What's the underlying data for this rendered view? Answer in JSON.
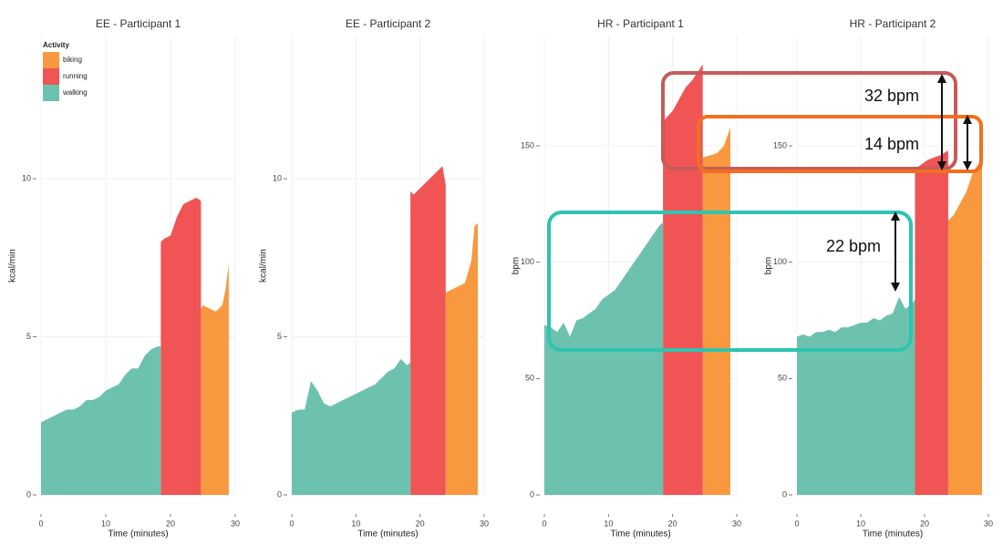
{
  "chart_data": [
    {
      "type": "area",
      "title": "EE - Participant 1",
      "x_label": "Time (minutes)",
      "y_label": "kcal/min",
      "xlim": [
        0,
        30
      ],
      "xticks": [
        0,
        10,
        20,
        30
      ],
      "ylim": [
        0,
        14.5
      ],
      "yticks": [
        0,
        5,
        10
      ],
      "grid": true,
      "legend": "top-left",
      "legend_title": "Activity",
      "series": [
        {
          "name": "biking",
          "color": "#f8993f",
          "x": [
            24.7,
            25,
            26,
            27,
            28,
            28.5,
            29
          ],
          "values": [
            5.9,
            6.0,
            5.9,
            5.8,
            6.0,
            6.5,
            7.3
          ]
        },
        {
          "name": "running",
          "color": "#f05454",
          "x": [
            18.5,
            19,
            20,
            21,
            22,
            23,
            24,
            24.7
          ],
          "values": [
            8.0,
            8.1,
            8.2,
            8.8,
            9.2,
            9.3,
            9.4,
            9.3
          ]
        },
        {
          "name": "walking",
          "color": "#6cc2ae",
          "x": [
            0,
            1,
            2,
            3,
            4,
            5,
            6,
            7,
            8,
            9,
            10,
            11,
            12,
            13,
            14,
            15,
            16,
            17,
            18,
            18.5
          ],
          "values": [
            2.3,
            2.4,
            2.5,
            2.6,
            2.7,
            2.7,
            2.8,
            3.0,
            3.0,
            3.1,
            3.3,
            3.4,
            3.5,
            3.8,
            4.0,
            4.0,
            4.4,
            4.6,
            4.7,
            4.7
          ]
        }
      ]
    },
    {
      "type": "area",
      "title": "EE - Participant 2",
      "x_label": "Time (minutes)",
      "y_label": "kcal/min",
      "xlim": [
        0,
        30
      ],
      "xticks": [
        0,
        10,
        20,
        30
      ],
      "ylim": [
        0,
        14.5
      ],
      "yticks": [
        0,
        5,
        10
      ],
      "grid": true,
      "series": [
        {
          "name": "biking",
          "color": "#f8993f",
          "x": [
            24,
            25,
            26,
            27,
            28,
            28.5,
            29
          ],
          "values": [
            6.4,
            6.5,
            6.6,
            6.7,
            7.4,
            8.5,
            8.6
          ]
        },
        {
          "name": "running",
          "color": "#f05454",
          "x": [
            18.5,
            19,
            20,
            21,
            22,
            23,
            23.5,
            24
          ],
          "values": [
            9.6,
            9.5,
            9.7,
            9.9,
            10.1,
            10.3,
            10.4,
            9.8
          ]
        },
        {
          "name": "walking",
          "color": "#6cc2ae",
          "x": [
            0,
            1,
            2,
            3,
            4,
            5,
            6,
            7,
            8,
            9,
            10,
            11,
            12,
            13,
            14,
            15,
            16,
            17,
            18,
            18.5
          ],
          "values": [
            2.6,
            2.7,
            2.7,
            3.6,
            3.3,
            2.9,
            2.8,
            2.9,
            3.0,
            3.1,
            3.2,
            3.3,
            3.4,
            3.5,
            3.7,
            3.9,
            4.0,
            4.3,
            4.1,
            4.2
          ]
        }
      ]
    },
    {
      "type": "area",
      "title": "HR - Participant 1",
      "x_label": "Time (minutes)",
      "y_label": "bpm",
      "xlim": [
        0,
        30
      ],
      "xticks": [
        0,
        10,
        20,
        30
      ],
      "ylim": [
        0,
        197
      ],
      "yticks": [
        0,
        50,
        100,
        150
      ],
      "grid": true,
      "series": [
        {
          "name": "biking",
          "color": "#f8993f",
          "x": [
            24.7,
            26,
            27,
            28,
            29
          ],
          "values": [
            145,
            146,
            147,
            150,
            158
          ]
        },
        {
          "name": "running",
          "color": "#f05454",
          "x": [
            18.5,
            19,
            20,
            21,
            22,
            23,
            24,
            24.7
          ],
          "values": [
            160,
            162,
            165,
            170,
            175,
            178,
            182,
            185
          ]
        },
        {
          "name": "walking",
          "color": "#6cc2ae",
          "x": [
            0,
            1,
            2,
            3,
            4,
            5,
            6,
            7,
            8,
            9,
            10,
            11,
            12,
            13,
            14,
            15,
            16,
            17,
            18,
            18.5
          ],
          "values": [
            73,
            72,
            70,
            74,
            68,
            75,
            76,
            78,
            80,
            84,
            86,
            88,
            92,
            96,
            100,
            104,
            108,
            112,
            116,
            117
          ]
        }
      ]
    },
    {
      "type": "area",
      "title": "HR - Participant 2",
      "x_label": "Time (minutes)",
      "y_label": "bpm",
      "xlim": [
        0,
        30
      ],
      "xticks": [
        0,
        10,
        20,
        30
      ],
      "ylim": [
        0,
        197
      ],
      "yticks": [
        0,
        50,
        100,
        150
      ],
      "grid": true,
      "annotations": [
        "32 bpm",
        "14 bpm",
        "22 bpm"
      ],
      "series": [
        {
          "name": "biking",
          "color": "#f8993f",
          "x": [
            23.7,
            24.5,
            25.5,
            26.5,
            27.5,
            29
          ],
          "values": [
            118,
            120,
            125,
            130,
            138,
            145
          ]
        },
        {
          "name": "running",
          "color": "#f05454",
          "x": [
            18.5,
            19.5,
            20.5,
            21.5,
            22.5,
            23.7
          ],
          "values": [
            140,
            142,
            144,
            145,
            146,
            148
          ]
        },
        {
          "name": "walking",
          "color": "#6cc2ae",
          "x": [
            0,
            1,
            2,
            3,
            4,
            5,
            6,
            7,
            8,
            9,
            10,
            11,
            12,
            13,
            14,
            15,
            16,
            17,
            18,
            18.5
          ],
          "values": [
            68,
            69,
            68,
            70,
            70,
            71,
            70,
            72,
            72,
            73,
            74,
            74,
            76,
            75,
            77,
            78,
            85,
            80,
            82,
            84
          ]
        }
      ]
    }
  ]
}
